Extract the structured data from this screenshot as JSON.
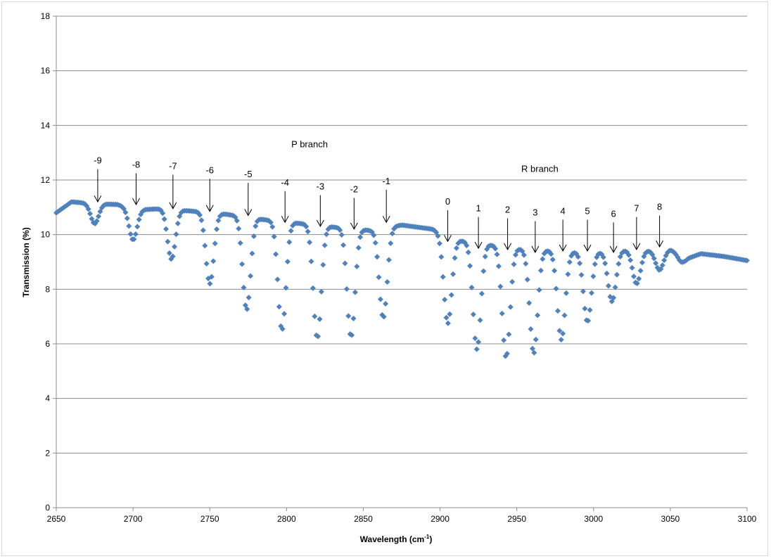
{
  "chart_data": {
    "type": "scatter",
    "title": "",
    "xlabel": "Wavelength (cm",
    "xlabel_sup": "-1",
    "xlabel_close": ")",
    "ylabel": "Transmission (%)",
    "xlim": [
      2650,
      3100
    ],
    "ylim": [
      0,
      18
    ],
    "x_ticks": [
      2650,
      2700,
      2750,
      2800,
      2850,
      2900,
      2950,
      3000,
      3050,
      3100
    ],
    "y_ticks": [
      0,
      2,
      4,
      6,
      8,
      10,
      12,
      14,
      16,
      18
    ],
    "grid": "horizontal",
    "legend": "none",
    "marker_color": "#4f81bd",
    "marker": "diamond",
    "series": [
      {
        "baseline": [
          [
            2650,
            10.8
          ],
          [
            2660,
            11.2
          ],
          [
            2670,
            11.15
          ],
          [
            2690,
            11.1
          ],
          [
            2700,
            10.9
          ],
          [
            2720,
            10.95
          ],
          [
            2740,
            10.85
          ],
          [
            2760,
            10.75
          ],
          [
            2785,
            10.55
          ],
          [
            2810,
            10.4
          ],
          [
            2835,
            10.25
          ],
          [
            2855,
            10.15
          ],
          [
            2875,
            10.35
          ],
          [
            2895,
            10.2
          ],
          [
            2910,
            9.8
          ],
          [
            2935,
            9.6
          ],
          [
            2955,
            9.45
          ],
          [
            2975,
            9.4
          ],
          [
            2990,
            9.35
          ],
          [
            3010,
            9.35
          ],
          [
            3025,
            9.45
          ],
          [
            3040,
            9.4
          ],
          [
            3050,
            9.45
          ],
          [
            3060,
            9.1
          ],
          [
            3070,
            9.3
          ],
          [
            3085,
            9.2
          ],
          [
            3100,
            9.05
          ]
        ],
        "dips": [
          {
            "x": 2675,
            "min": 10.4,
            "w": 2.6
          },
          {
            "x": 2700,
            "min": 9.8,
            "w": 2.6
          },
          {
            "x": 2725,
            "min": 9.1,
            "w": 2.6
          },
          {
            "x": 2750,
            "min": 8.2,
            "w": 2.6
          },
          {
            "x": 2774,
            "min": 7.25,
            "w": 2.6
          },
          {
            "x": 2797,
            "min": 6.5,
            "w": 2.6
          },
          {
            "x": 2820,
            "min": 6.2,
            "w": 2.6
          },
          {
            "x": 2842,
            "min": 6.25,
            "w": 2.6
          },
          {
            "x": 2863,
            "min": 6.95,
            "w": 2.6
          },
          {
            "x": 2905,
            "min": 6.75,
            "w": 2.6
          },
          {
            "x": 2924,
            "min": 5.8,
            "w": 2.6
          },
          {
            "x": 2943,
            "min": 5.5,
            "w": 2.6
          },
          {
            "x": 2961,
            "min": 5.65,
            "w": 2.6
          },
          {
            "x": 2979,
            "min": 6.15,
            "w": 2.6
          },
          {
            "x": 2996,
            "min": 6.8,
            "w": 2.6
          },
          {
            "x": 3012,
            "min": 7.55,
            "w": 2.6
          },
          {
            "x": 3028,
            "min": 8.2,
            "w": 2.6
          },
          {
            "x": 3043,
            "min": 8.7,
            "w": 2.6
          },
          {
            "x": 3057,
            "min": 9.0,
            "w": 2.0
          }
        ]
      }
    ],
    "annotations": [
      {
        "text": "P branch",
        "x": 2815,
        "y": 13.2
      },
      {
        "text": "R branch",
        "x": 2965,
        "y": 12.3
      }
    ],
    "arrow_labels": [
      {
        "label": "-9",
        "x": 2677,
        "y_text": 12.6,
        "y_tip": 11.2
      },
      {
        "label": "-8",
        "x": 2702,
        "y_text": 12.45,
        "y_tip": 11.1
      },
      {
        "label": "-7",
        "x": 2726,
        "y_text": 12.4,
        "y_tip": 10.95
      },
      {
        "label": "-6",
        "x": 2750,
        "y_text": 12.25,
        "y_tip": 10.85
      },
      {
        "label": "-5",
        "x": 2775,
        "y_text": 12.1,
        "y_tip": 10.7
      },
      {
        "label": "-4",
        "x": 2799,
        "y_text": 11.8,
        "y_tip": 10.45
      },
      {
        "label": "-3",
        "x": 2822,
        "y_text": 11.65,
        "y_tip": 10.3
      },
      {
        "label": "-2",
        "x": 2844,
        "y_text": 11.55,
        "y_tip": 10.2
      },
      {
        "label": "-1",
        "x": 2865,
        "y_text": 11.85,
        "y_tip": 10.45
      },
      {
        "label": "0",
        "x": 2905,
        "y_text": 11.1,
        "y_tip": 9.75
      },
      {
        "label": "1",
        "x": 2925,
        "y_text": 10.85,
        "y_tip": 9.5
      },
      {
        "label": "2",
        "x": 2944,
        "y_text": 10.8,
        "y_tip": 9.45
      },
      {
        "label": "3",
        "x": 2962,
        "y_text": 10.7,
        "y_tip": 9.35
      },
      {
        "label": "4",
        "x": 2980,
        "y_text": 10.75,
        "y_tip": 9.4
      },
      {
        "label": "5",
        "x": 2996,
        "y_text": 10.75,
        "y_tip": 9.4
      },
      {
        "label": "6",
        "x": 3013,
        "y_text": 10.65,
        "y_tip": 9.35
      },
      {
        "label": "7",
        "x": 3028,
        "y_text": 10.85,
        "y_tip": 9.45
      },
      {
        "label": "8",
        "x": 3043,
        "y_text": 10.9,
        "y_tip": 9.55
      }
    ]
  }
}
